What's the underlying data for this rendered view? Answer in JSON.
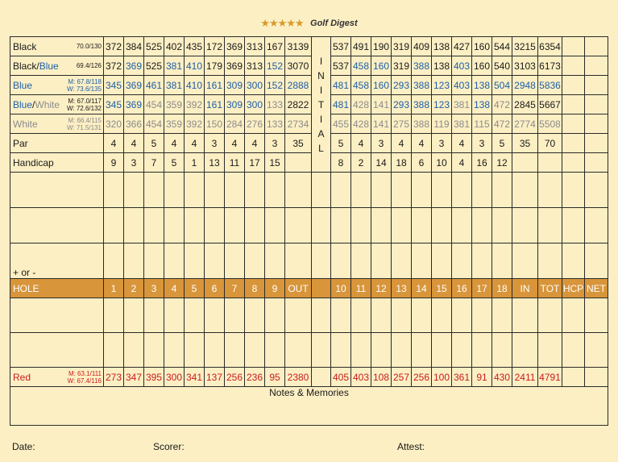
{
  "header": {
    "stars": "★★★★★",
    "brand": "Golf Digest"
  },
  "initial_letters": [
    "I",
    "N",
    "I",
    "T",
    "I",
    "A",
    "L"
  ],
  "tees": [
    {
      "name": "Black",
      "rating": [
        "70.0/130"
      ],
      "front": [
        "372",
        "384",
        "525",
        "402",
        "435",
        "172",
        "369",
        "313",
        "167"
      ],
      "out": "3139",
      "back": [
        "537",
        "491",
        "190",
        "319",
        "409",
        "138",
        "427",
        "160",
        "544"
      ],
      "in": "3215",
      "tot": "6354"
    },
    {
      "name": "Black/Blue",
      "rating": [
        "69.4/126"
      ],
      "front": [
        "372",
        "369",
        "525",
        "381",
        "410",
        "179",
        "369",
        "313",
        "152"
      ],
      "out": "3070",
      "back": [
        "537",
        "458",
        "160",
        "319",
        "388",
        "138",
        "403",
        "160",
        "540"
      ],
      "in": "3103",
      "tot": "6173"
    },
    {
      "name": "Blue",
      "rating": [
        "M: 67.8/118",
        "W: 73.6/135"
      ],
      "front": [
        "345",
        "369",
        "461",
        "381",
        "410",
        "161",
        "309",
        "300",
        "152"
      ],
      "out": "2888",
      "back": [
        "481",
        "458",
        "160",
        "293",
        "388",
        "123",
        "403",
        "138",
        "504"
      ],
      "in": "2948",
      "tot": "5836"
    },
    {
      "name": "Blue/White",
      "rating": [
        "M: 67.0/117",
        "W: 72.6/132"
      ],
      "front": [
        "345",
        "369",
        "454",
        "359",
        "392",
        "161",
        "309",
        "300",
        "133"
      ],
      "out": "2822",
      "back": [
        "481",
        "428",
        "141",
        "293",
        "388",
        "123",
        "381",
        "138",
        "472"
      ],
      "in": "2845",
      "tot": "5667"
    },
    {
      "name": "White",
      "rating": [
        "M: 66.4/115",
        "W: 71.5/131"
      ],
      "front": [
        "320",
        "366",
        "454",
        "359",
        "392",
        "150",
        "284",
        "276",
        "133"
      ],
      "out": "2734",
      "back": [
        "455",
        "428",
        "141",
        "275",
        "388",
        "119",
        "381",
        "115",
        "472"
      ],
      "in": "2774",
      "tot": "5508"
    }
  ],
  "par": {
    "label": "Par",
    "front": [
      "4",
      "4",
      "5",
      "4",
      "4",
      "3",
      "4",
      "4",
      "3"
    ],
    "out": "35",
    "back": [
      "5",
      "4",
      "3",
      "4",
      "4",
      "3",
      "4",
      "3",
      "5"
    ],
    "in": "35",
    "tot": "70"
  },
  "handicap": {
    "label": "Handicap",
    "front": [
      "9",
      "3",
      "7",
      "5",
      "1",
      "13",
      "11",
      "17",
      "15"
    ],
    "back": [
      "8",
      "2",
      "14",
      "18",
      "6",
      "10",
      "4",
      "16",
      "12"
    ]
  },
  "plus_minus": "+ or -",
  "hole_row": {
    "label": "HOLE",
    "front": [
      "1",
      "2",
      "3",
      "4",
      "5",
      "6",
      "7",
      "8",
      "9"
    ],
    "out": "OUT",
    "back": [
      "10",
      "11",
      "12",
      "13",
      "14",
      "15",
      "16",
      "17",
      "18"
    ],
    "in": "IN",
    "tot": "TOT",
    "hcp": "HCP",
    "net": "NET"
  },
  "red": {
    "name": "Red",
    "rating": [
      "M: 63.1/111",
      "W: 67.4/116"
    ],
    "front": [
      "273",
      "347",
      "395",
      "300",
      "341",
      "137",
      "256",
      "236",
      "95"
    ],
    "out": "2380",
    "back": [
      "405",
      "403",
      "108",
      "257",
      "256",
      "100",
      "361",
      "91",
      "430"
    ],
    "in": "2411",
    "tot": "4791"
  },
  "notes_label": "Notes & Memories",
  "footer": {
    "date": "Date:",
    "scorer": "Scorer:",
    "attest": "Attest:"
  },
  "colors": {
    "background": "#fcefc4",
    "hole_row": "#d8953a",
    "blue": "#1d5fa8",
    "gray": "#8b8b8b",
    "red": "#c81d1d",
    "stars": "#d99a2b"
  }
}
